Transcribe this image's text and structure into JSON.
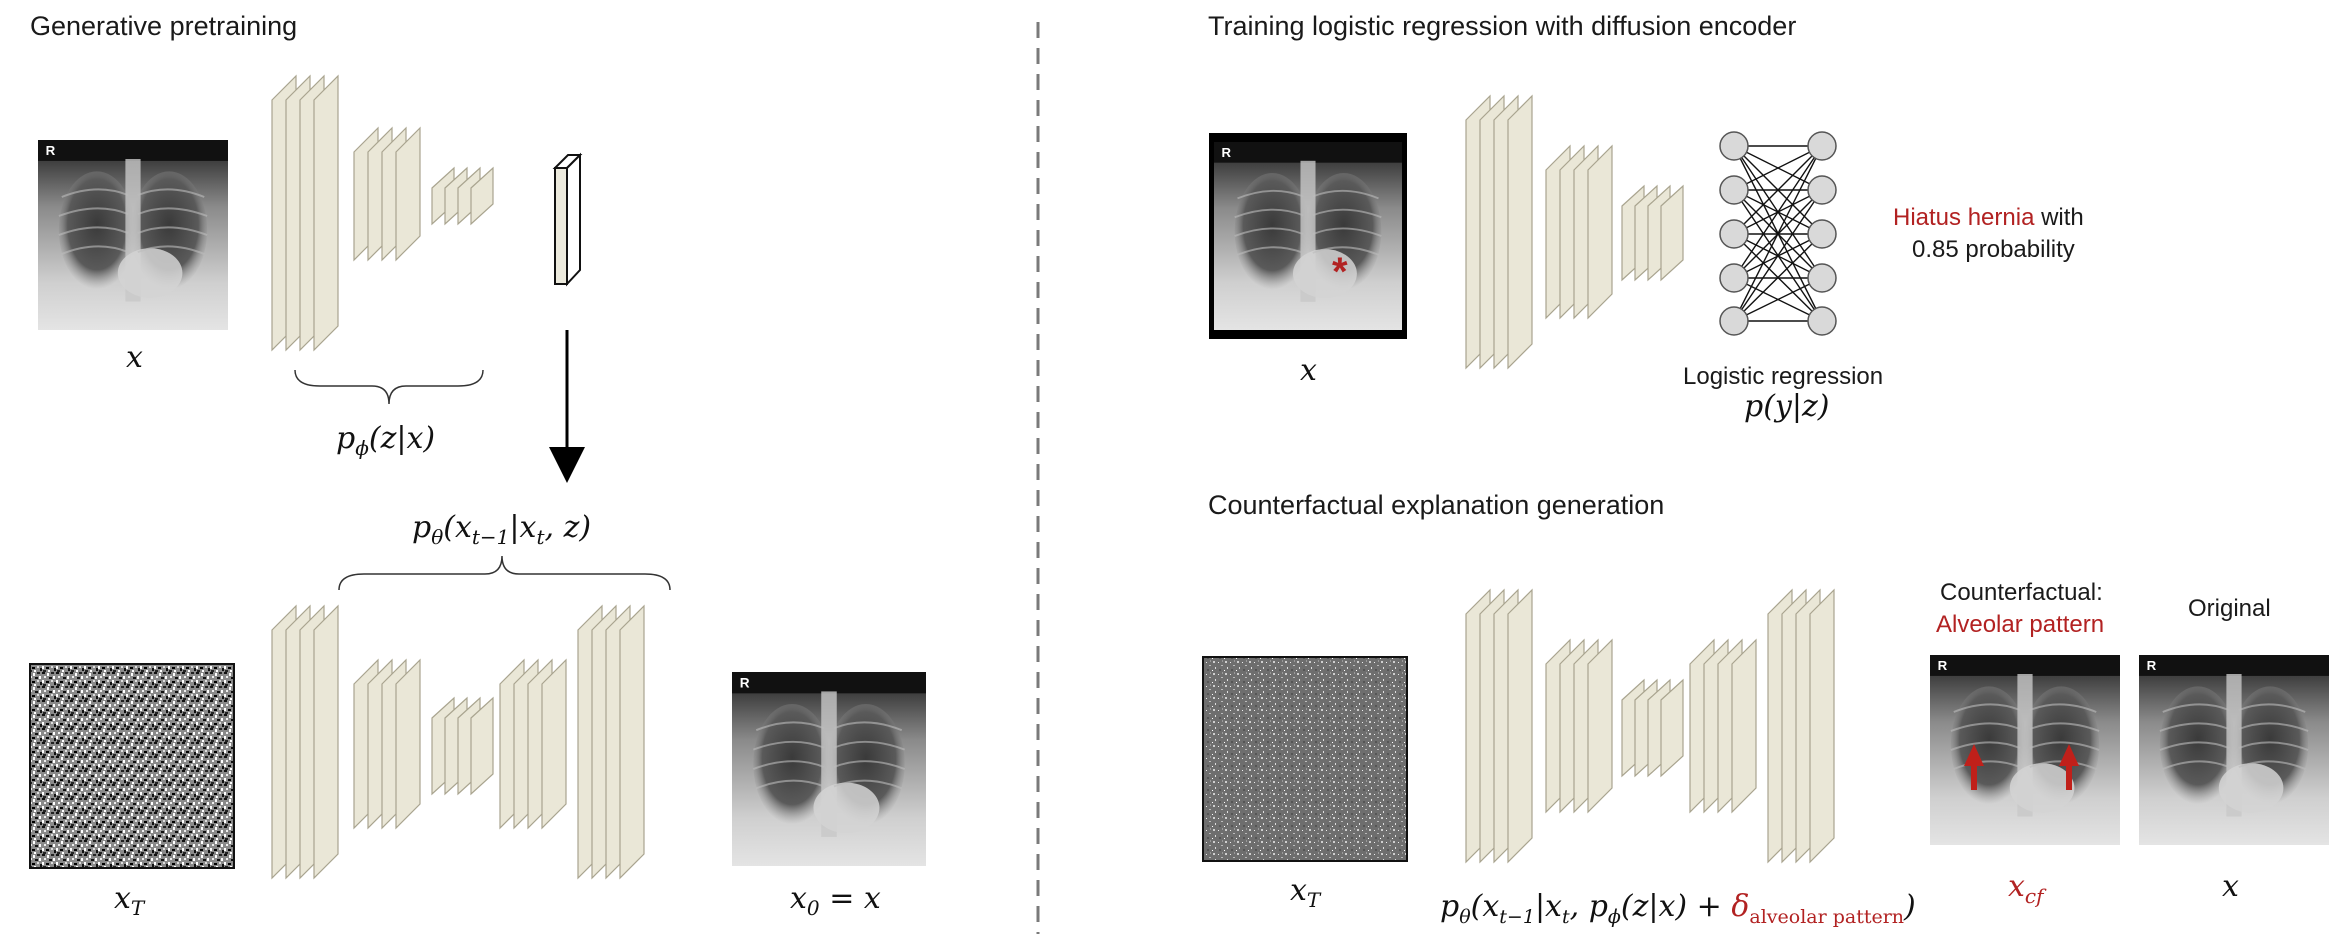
{
  "left": {
    "title": "Generative pretraining",
    "label_x": "x",
    "encoder_label": "p",
    "encoder_sub": "ϕ",
    "encoder_args": "(z|x)",
    "decoder_label": "p",
    "decoder_sub": "θ",
    "decoder_args": "(x",
    "decoder_args_sub1": "t−1",
    "decoder_args_mid": "|x",
    "decoder_args_sub2": "t",
    "decoder_args_end": ", z)",
    "noise_label": "x",
    "noise_sub": "T",
    "output_label": "x",
    "output_sub": "0",
    "output_end": " = x"
  },
  "right_top": {
    "title": "Training logistic regression with diffusion encoder",
    "label_x": "x",
    "regression_label": "Logistic regression",
    "regression_formula": "p(y|z)",
    "result_red": "Hiatus hernia",
    "result_rest": " with",
    "result_line2": "0.85 probability"
  },
  "right_bottom": {
    "title": "Counterfactual explanation generation",
    "noise_label": "x",
    "noise_sub": "T",
    "formula_a": "p",
    "formula_a_sub": "θ",
    "formula_b": "(x",
    "formula_b_sub": "t−1",
    "formula_c": "|x",
    "formula_c_sub": "t",
    "formula_d": ", p",
    "formula_d_sub": "ϕ",
    "formula_e": "(z|x) + ",
    "formula_delta": "δ",
    "formula_delta_sub": "alveolar pattern",
    "formula_end": ")",
    "counterfactual_label": "Counterfactual:",
    "counterfactual_condition": "Alveolar pattern",
    "original_label": "Original",
    "cf_label": "x",
    "cf_sub": "cf",
    "orig_label": "x"
  },
  "colors": {
    "accent_red": "#b22222",
    "layer_fill": "#eae7d7",
    "layer_stroke": "#a9a48f",
    "divider": "#7a7a7a"
  },
  "icons": {
    "x_ray": "chest-xray-image",
    "noise": "noise-image",
    "arrow": "down-arrow-icon"
  }
}
